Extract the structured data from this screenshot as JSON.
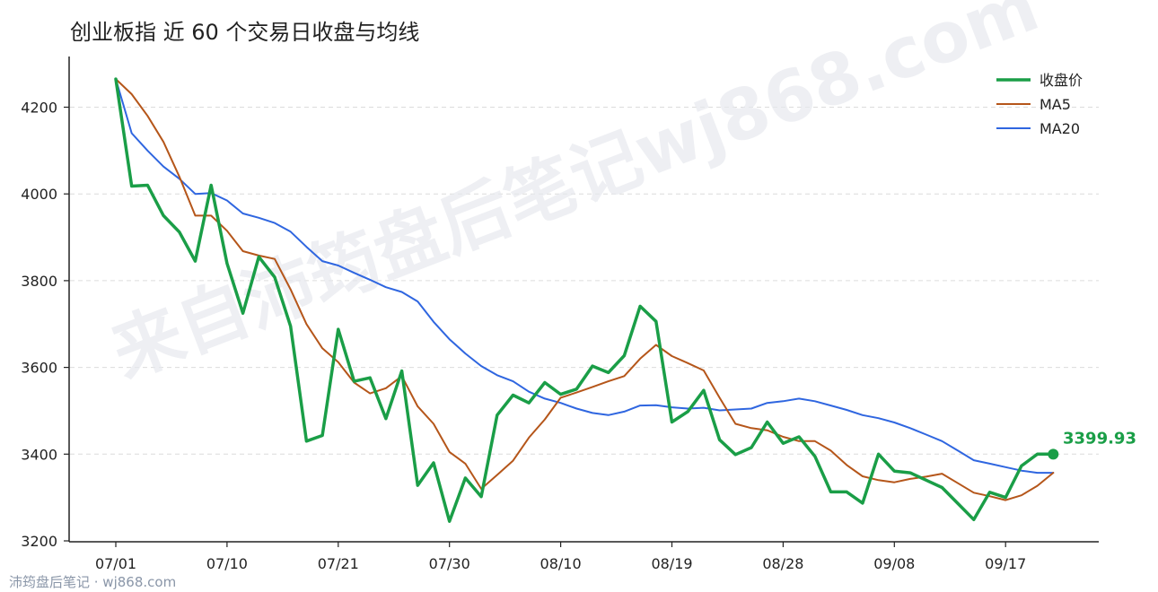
{
  "title": "创业板指 近 60 个交易日收盘与均线",
  "watermark": "来自沛筠盘后笔记wj868.com",
  "footer": "沛筠盘后笔记 · wj868.com",
  "colors": {
    "close": "#1a9e47",
    "ma5": "#b5561a",
    "ma20": "#2f66e0"
  },
  "chart_data": {
    "type": "line",
    "ylim": [
      3200,
      4310
    ],
    "yticks": [
      "3200",
      "3400",
      "3600",
      "3800",
      "4000",
      "4200"
    ],
    "xticks": [
      {
        "index": 0,
        "label": "07/01"
      },
      {
        "index": 7,
        "label": "07/10"
      },
      {
        "index": 14,
        "label": "07/21"
      },
      {
        "index": 21,
        "label": "07/30"
      },
      {
        "index": 28,
        "label": "08/10"
      },
      {
        "index": 35,
        "label": "08/19"
      },
      {
        "index": 42,
        "label": "08/28"
      },
      {
        "index": 49,
        "label": "09/08"
      },
      {
        "index": 56,
        "label": "09/17"
      }
    ],
    "last_label": "3399.93",
    "legend": {
      "placement": "top-right",
      "labels": [
        "收盘价",
        "MA5",
        "MA20"
      ]
    },
    "series": [
      {
        "key": "close",
        "values": [
          4265,
          4018,
          4020,
          3950,
          3912,
          3845,
          4020,
          3840,
          3725,
          3855,
          3808,
          3695,
          3430,
          3443,
          3688,
          3568,
          3576,
          3482,
          3592,
          3328,
          3380,
          3245,
          3345,
          3302,
          3490,
          3536,
          3518,
          3565,
          3538,
          3550,
          3603,
          3588,
          3627,
          3741,
          3706,
          3474,
          3498,
          3547,
          3433,
          3399,
          3415,
          3474,
          3425,
          3440,
          3395,
          3313,
          3313,
          3287,
          3400,
          3361,
          3357,
          3340,
          3323,
          3286,
          3249,
          3312,
          3300,
          3373,
          3400,
          3399.93
        ]
      },
      {
        "key": "ma5",
        "values": [
          4265,
          4230,
          4180,
          4120,
          4040,
          3950,
          3950,
          3915,
          3868,
          3858,
          3850,
          3780,
          3700,
          3644,
          3612,
          3565,
          3540,
          3552,
          3580,
          3510,
          3470,
          3405,
          3378,
          3320,
          3352,
          3385,
          3438,
          3480,
          3530,
          3542,
          3555,
          3568,
          3580,
          3620,
          3652,
          3626,
          3610,
          3593,
          3530,
          3470,
          3460,
          3455,
          3440,
          3430,
          3430,
          3408,
          3375,
          3349,
          3340,
          3335,
          3343,
          3348,
          3355,
          3333,
          3311,
          3303,
          3294,
          3305,
          3327,
          3357
        ]
      },
      {
        "key": "ma20",
        "values": [
          4265,
          4140,
          4100,
          4063,
          4035,
          4000,
          4002,
          3985,
          3955,
          3945,
          3933,
          3913,
          3878,
          3845,
          3835,
          3818,
          3802,
          3785,
          3774,
          3752,
          3705,
          3665,
          3632,
          3603,
          3582,
          3568,
          3544,
          3528,
          3518,
          3505,
          3495,
          3490,
          3498,
          3512,
          3513,
          3508,
          3505,
          3507,
          3501,
          3503,
          3505,
          3518,
          3522,
          3528,
          3522,
          3512,
          3502,
          3490,
          3483,
          3473,
          3460,
          3445,
          3430,
          3408,
          3386,
          3378,
          3370,
          3362,
          3357,
          3357
        ]
      }
    ]
  }
}
